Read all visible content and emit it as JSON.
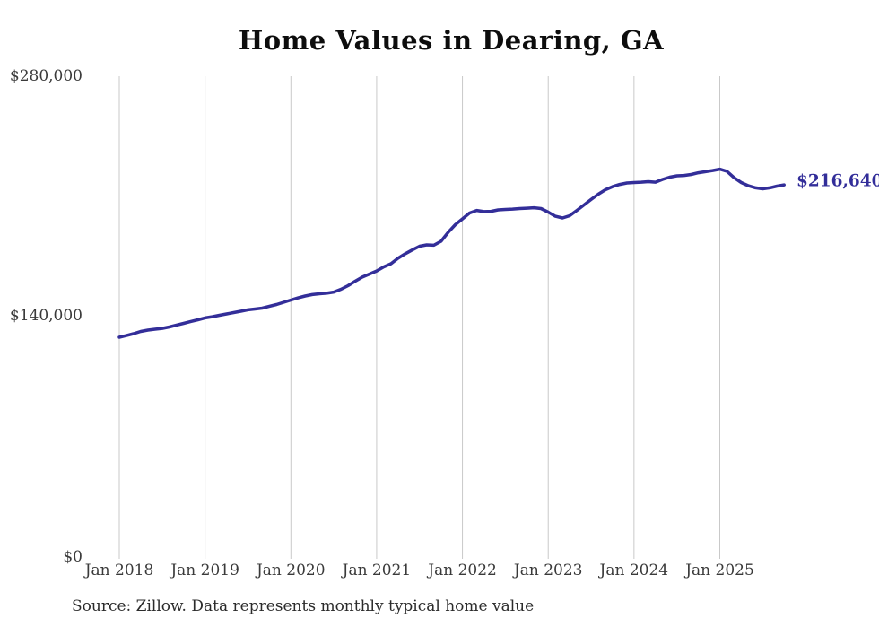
{
  "title": "Home Values in Dearing, GA",
  "source_note": "Source: Zillow. Data represents monthly typical home value",
  "end_label": "$216,640",
  "colors": {
    "line": "#332e99",
    "end_label_text": "#322d99",
    "gridline": "#c9c9c9",
    "tick_text": "#3a3a3a",
    "title_text": "#0d0d0d",
    "source_text": "#2b2b2b",
    "background": "#ffffff"
  },
  "chart_data": {
    "type": "line",
    "title": "Home Values in Dearing, GA",
    "xlabel": "",
    "ylabel": "",
    "ylim": [
      0,
      280000
    ],
    "y_tick_labels": [
      "$280,000",
      "$140,000",
      "$0"
    ],
    "x_tick_labels": [
      "Jan 2018",
      "Jan 2019",
      "Jan 2020",
      "Jan 2021",
      "Jan 2022",
      "Jan 2023",
      "Jan 2024",
      "Jan 2025"
    ],
    "grid": "vertical",
    "legend": "none",
    "series_name": "Monthly typical home value (USD)",
    "last_point_label": "$216,640",
    "x": [
      "2018-01",
      "2018-02",
      "2018-03",
      "2018-04",
      "2018-05",
      "2018-06",
      "2018-07",
      "2018-08",
      "2018-09",
      "2018-10",
      "2018-11",
      "2018-12",
      "2019-01",
      "2019-02",
      "2019-03",
      "2019-04",
      "2019-05",
      "2019-06",
      "2019-07",
      "2019-08",
      "2019-09",
      "2019-10",
      "2019-11",
      "2019-12",
      "2020-01",
      "2020-02",
      "2020-03",
      "2020-04",
      "2020-05",
      "2020-06",
      "2020-07",
      "2020-08",
      "2020-09",
      "2020-10",
      "2020-11",
      "2020-12",
      "2021-01",
      "2021-02",
      "2021-03",
      "2021-04",
      "2021-05",
      "2021-06",
      "2021-07",
      "2021-08",
      "2021-09",
      "2021-10",
      "2021-11",
      "2021-12",
      "2022-01",
      "2022-02",
      "2022-03",
      "2022-04",
      "2022-05",
      "2022-06",
      "2022-07",
      "2022-08",
      "2022-09",
      "2022-10",
      "2022-11",
      "2022-12",
      "2023-01",
      "2023-02",
      "2023-03",
      "2023-04",
      "2023-05",
      "2023-06",
      "2023-07",
      "2023-08",
      "2023-09",
      "2023-10",
      "2023-11",
      "2023-12",
      "2024-01",
      "2024-02",
      "2024-03",
      "2024-04",
      "2024-05",
      "2024-06",
      "2024-07",
      "2024-08",
      "2024-09",
      "2024-10",
      "2024-11",
      "2024-12",
      "2025-01",
      "2025-02",
      "2025-03",
      "2025-04",
      "2025-05",
      "2025-06",
      "2025-07",
      "2025-08",
      "2025-09",
      "2025-10"
    ],
    "values": [
      127700,
      128700,
      129800,
      131100,
      131900,
      132400,
      132900,
      133700,
      134800,
      135800,
      136900,
      137900,
      139000,
      139700,
      140500,
      141300,
      142100,
      142900,
      143700,
      144200,
      144700,
      145800,
      146800,
      148100,
      149400,
      150700,
      151800,
      152600,
      153100,
      153400,
      154100,
      155700,
      157800,
      160400,
      162800,
      164600,
      166400,
      168800,
      170600,
      173800,
      176400,
      178700,
      180800,
      181600,
      181400,
      183700,
      188900,
      193400,
      196800,
      200200,
      201700,
      201000,
      201200,
      202000,
      202300,
      202500,
      202800,
      203000,
      203300,
      202800,
      200700,
      198300,
      197300,
      198600,
      201700,
      204900,
      208100,
      211200,
      213800,
      215600,
      216900,
      217700,
      218000,
      218200,
      218500,
      218200,
      219800,
      221100,
      221900,
      222100,
      222700,
      223700,
      224300,
      225000,
      225800,
      224500,
      220800,
      218000,
      216100,
      214900,
      214300,
      214900,
      215900,
      216640
    ]
  }
}
